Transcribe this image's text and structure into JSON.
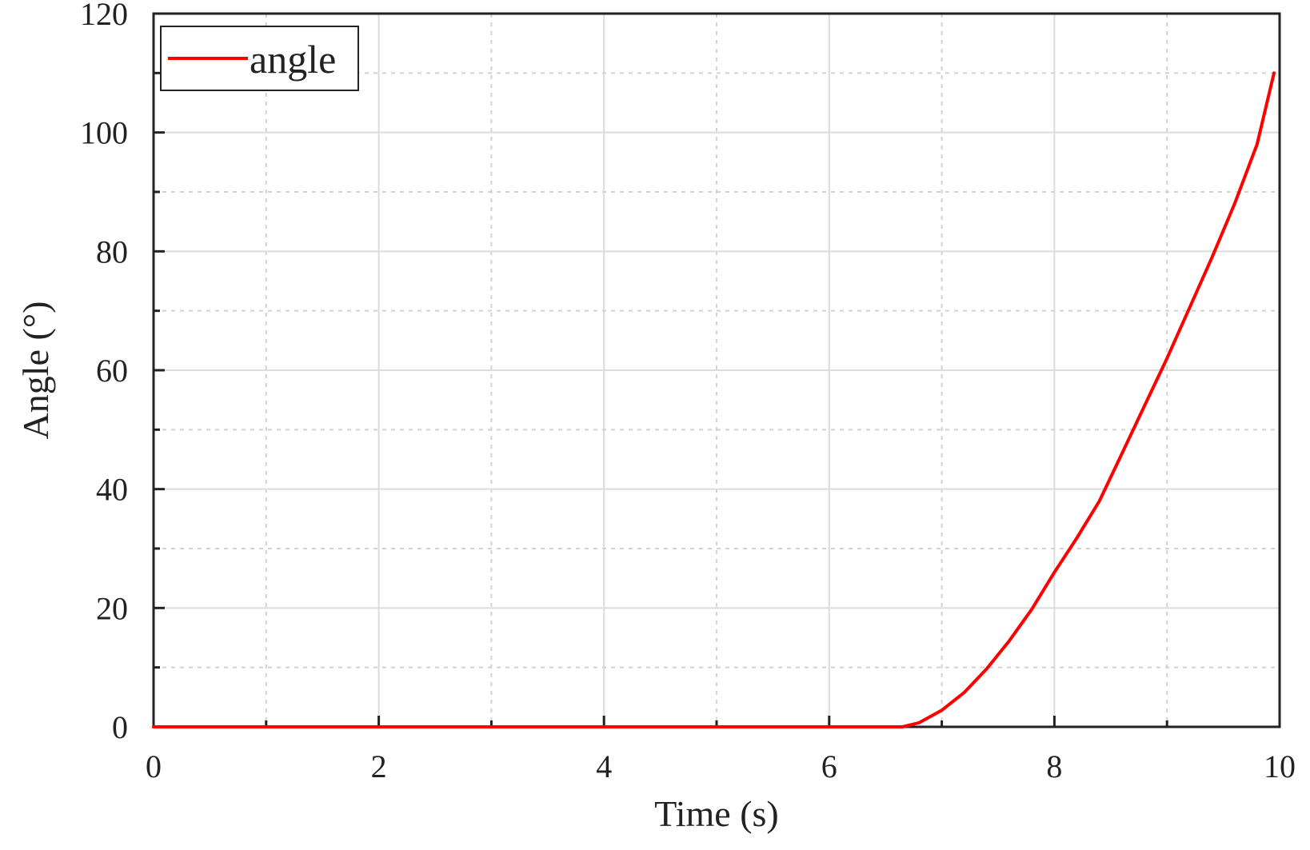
{
  "chart_data": {
    "type": "line",
    "xlabel": "Time (s)",
    "ylabel": "Angle (°)",
    "xlim": [
      0,
      10
    ],
    "ylim": [
      0,
      120
    ],
    "x_ticks": [
      "0",
      "2",
      "4",
      "6",
      "8",
      "10"
    ],
    "y_ticks": [
      "0",
      "20",
      "40",
      "60",
      "80",
      "100",
      "120"
    ],
    "grid": true,
    "legend": {
      "placement": "top-left",
      "entries": [
        "angle"
      ]
    },
    "series": [
      {
        "name": "angle",
        "color": "#ff0000",
        "x": [
          0,
          1,
          2,
          3,
          4,
          5,
          6,
          6.65,
          6.8,
          7.0,
          7.2,
          7.4,
          7.6,
          7.8,
          8.0,
          8.2,
          8.4,
          8.6,
          8.8,
          9.0,
          9.2,
          9.4,
          9.6,
          9.8,
          9.95
        ],
        "y": [
          0,
          0,
          0,
          0,
          0,
          0,
          0,
          0,
          0.7,
          2.8,
          5.8,
          9.8,
          14.5,
          19.8,
          26.0,
          31.8,
          38.0,
          46.0,
          54.0,
          62.0,
          70.5,
          79.0,
          88.0,
          98.0,
          110.0
        ]
      }
    ]
  }
}
